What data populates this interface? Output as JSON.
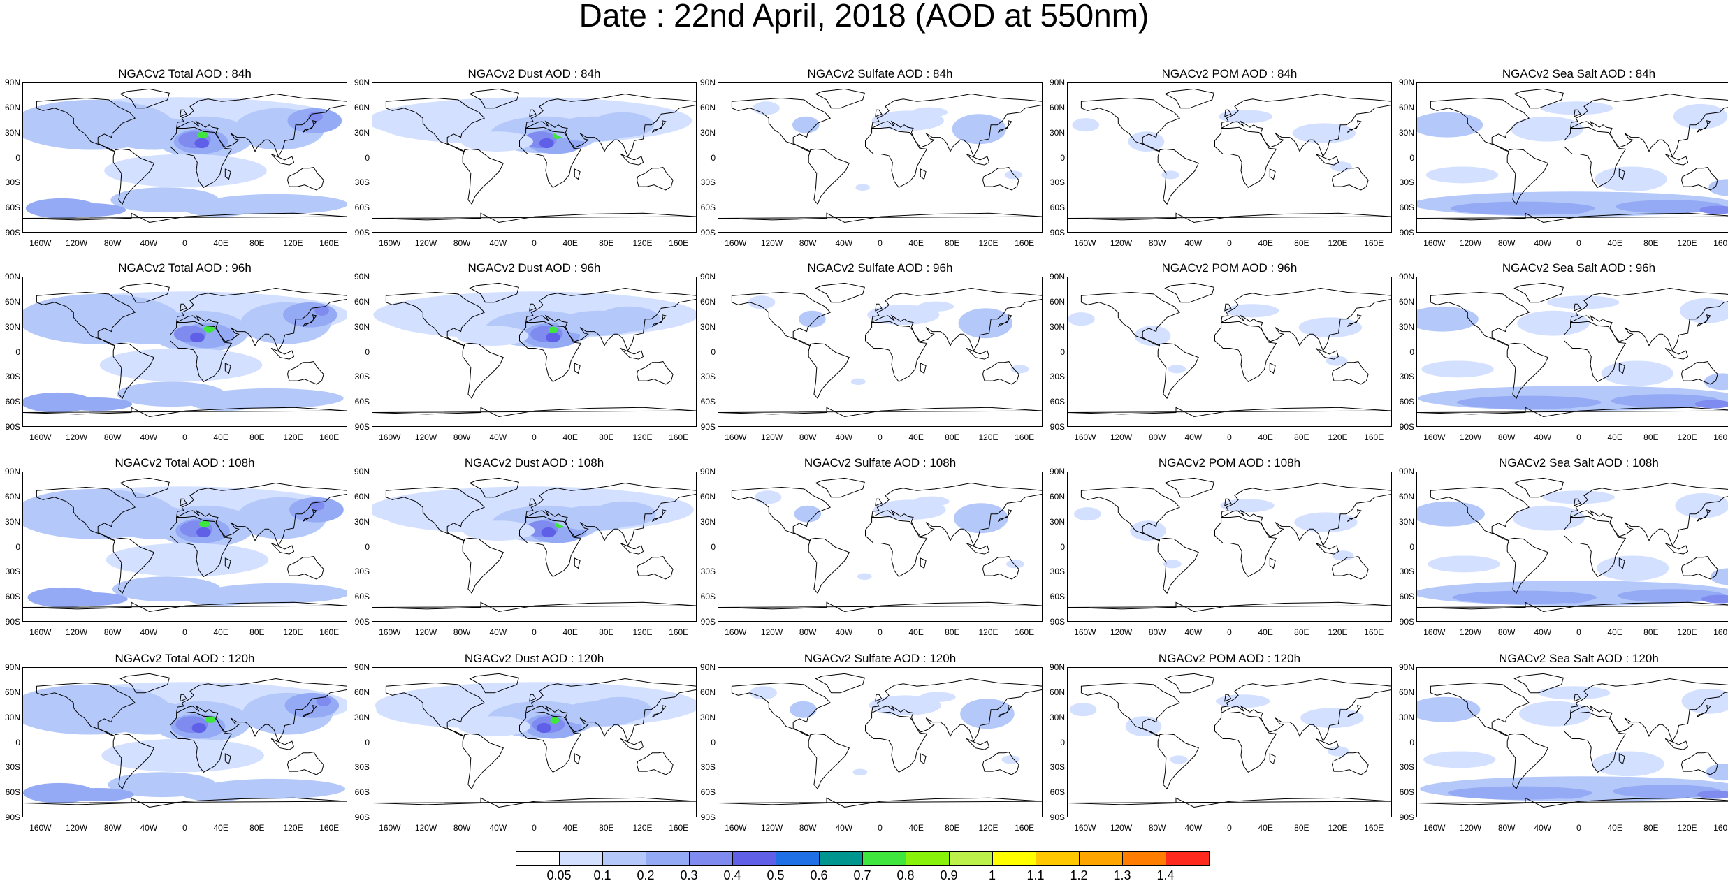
{
  "title": "Date : 22nd April, 2018 (AOD at 550nm)",
  "lat_ticks": [
    "90N",
    "60N",
    "30N",
    "0",
    "30S",
    "60S",
    "90S"
  ],
  "lon_ticks": [
    "160W",
    "120W",
    "80W",
    "40W",
    "0",
    "40E",
    "80E",
    "120E",
    "160E"
  ],
  "rows": [
    {
      "lead": "84h",
      "titles": [
        "NGACv2 Total AOD : 84h",
        "NGACv2 Dust AOD : 84h",
        "NGACv2 Sulfate AOD : 84h",
        "NGACv2 POM AOD : 84h",
        "NGACv2 Sea Salt AOD : 84h"
      ]
    },
    {
      "lead": "96h",
      "titles": [
        "NGACv2 Total AOD : 96h",
        "NGACv2 Dust AOD : 96h",
        "NGACv2 Sulfate AOD : 96h",
        "NGACv2 POM AOD : 96h",
        "NGACv2 Sea Salt AOD : 96h"
      ]
    },
    {
      "lead": "108h",
      "titles": [
        "NGACv2 Total AOD : 108h",
        "NGACv2 Dust AOD : 108h",
        "NGACv2 Sulfate AOD : 108h",
        "NGACv2 POM AOD : 108h",
        "NGACv2 Sea Salt AOD : 108h"
      ]
    },
    {
      "lead": "120h",
      "titles": [
        "NGACv2 Total AOD : 120h",
        "NGACv2 Dust AOD : 120h",
        "NGACv2 Sulfate AOD : 120h",
        "NGACv2 POM AOD : 120h",
        "NGACv2 Sea Salt AOD : 120h"
      ]
    }
  ],
  "species": [
    "total",
    "dust",
    "sulfate",
    "pom",
    "seasalt"
  ],
  "colorbar": {
    "labels": [
      "0.05",
      "0.1",
      "0.2",
      "0.3",
      "0.4",
      "0.5",
      "0.6",
      "0.7",
      "0.8",
      "0.9",
      "1",
      "1.1",
      "1.2",
      "1.3",
      "1.4"
    ],
    "colors": [
      "#ffffff",
      "#d4e0ff",
      "#b4c8fa",
      "#94aaf4",
      "#7f8bef",
      "#5f5fe8",
      "#1f6fe6",
      "#009690",
      "#3ee63e",
      "#88f20a",
      "#bcf04a",
      "#ffff00",
      "#ffc800",
      "#ffa500",
      "#ff7d00",
      "#ff2a1e"
    ]
  }
}
